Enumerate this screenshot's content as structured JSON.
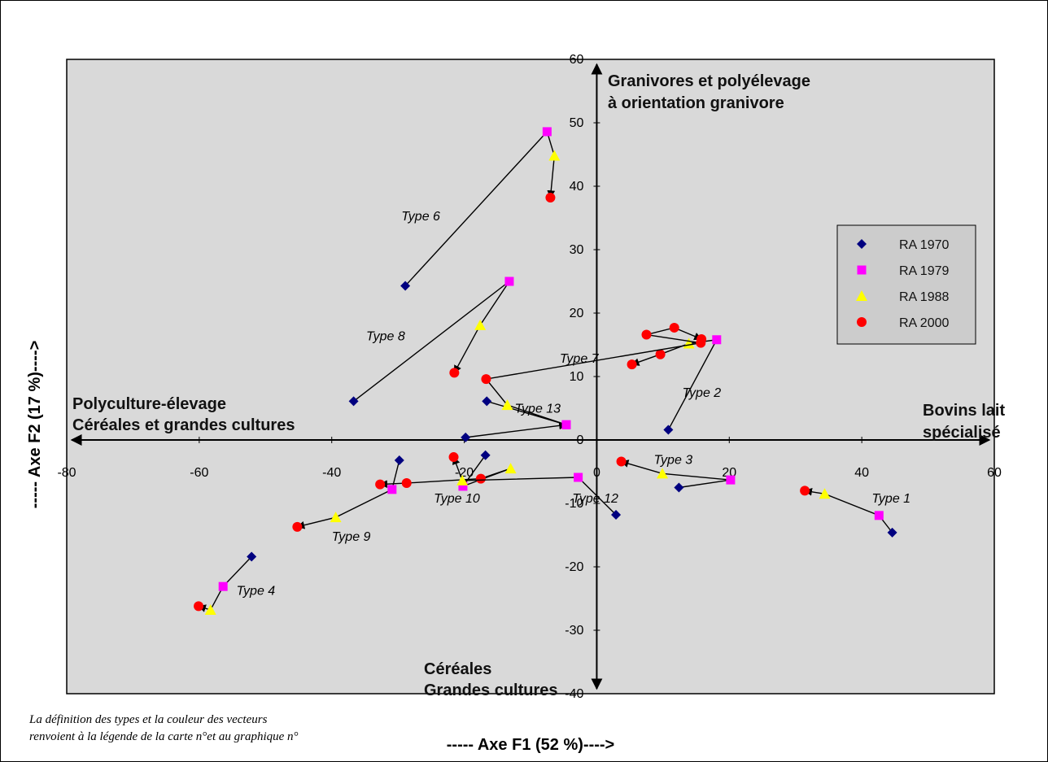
{
  "chart_data": {
    "type": "scatter",
    "xlabel": "----- Axe F1 (52 %)---->",
    "ylabel": "----- Axe F2 (17 %)---->",
    "xlim": [
      -80,
      60
    ],
    "ylim": [
      -40,
      60
    ],
    "xticks": [
      "-80",
      "-60",
      "-40",
      "-20",
      "0",
      "20",
      "40",
      "60"
    ],
    "yticks": [
      "-40",
      "-30",
      "-20",
      "-10",
      "0",
      "10",
      "20",
      "30",
      "40",
      "50",
      "60"
    ],
    "grid": false,
    "legend_position": "right",
    "series": [
      {
        "name": "RA 1970",
        "color": "#000080",
        "marker": "diamond"
      },
      {
        "name": "RA 1979",
        "color": "#ff00ff",
        "marker": "square"
      },
      {
        "name": "RA 1988",
        "color": "#ffff00",
        "marker": "triangle"
      },
      {
        "name": "RA 2000",
        "color": "#ff0000",
        "marker": "circle"
      }
    ],
    "trajectories": [
      {
        "label": "Type 1",
        "points": [
          [
            44.6,
            -14.6
          ],
          [
            42.6,
            -11.9
          ],
          [
            34.4,
            -8.5
          ],
          [
            31.4,
            -8.0
          ]
        ]
      },
      {
        "label": "Type 2",
        "points": [
          [
            10.8,
            1.6
          ],
          [
            18.1,
            15.8
          ],
          [
            13.9,
            15.2
          ],
          [
            9.6,
            13.5
          ],
          [
            5.3,
            11.9
          ]
        ]
      },
      {
        "label": "Type 3",
        "points": [
          [
            12.4,
            -7.5
          ],
          [
            20.2,
            -6.3
          ],
          [
            9.9,
            -5.3
          ],
          [
            3.7,
            -3.4
          ]
        ]
      },
      {
        "label": "Type 4",
        "points": [
          [
            -52.1,
            -18.4
          ],
          [
            -56.4,
            -23.1
          ],
          [
            -58.3,
            -26.8
          ],
          [
            -60.1,
            -26.2
          ]
        ]
      },
      {
        "label": "Type 6",
        "points": [
          [
            -28.9,
            24.3
          ],
          [
            -7.5,
            48.6
          ],
          [
            -6.4,
            44.8
          ],
          [
            -7.0,
            38.2
          ]
        ]
      },
      {
        "label": "Type 7",
        "points": [
          [
            -16.6,
            6.1
          ],
          [
            -4.6,
            2.4
          ],
          [
            -13.5,
            5.5
          ],
          [
            -16.7,
            9.6
          ],
          [
            15.7,
            15.3
          ],
          [
            7.5,
            16.6
          ],
          [
            11.7,
            17.7
          ],
          [
            15.8,
            15.9
          ]
        ]
      },
      {
        "label": "Type 8",
        "points": [
          [
            -36.7,
            6.1
          ],
          [
            -13.2,
            25.0
          ],
          [
            -17.6,
            18.1
          ],
          [
            -21.5,
            10.6
          ]
        ]
      },
      {
        "label": "Type 9",
        "points": [
          [
            -29.8,
            -3.2
          ],
          [
            -30.9,
            -7.8
          ],
          [
            -39.4,
            -12.2
          ],
          [
            -45.2,
            -13.7
          ]
        ]
      },
      {
        "label": "Type 10",
        "points": [
          [
            -16.8,
            -2.4
          ],
          [
            -20.2,
            -7.3
          ],
          [
            -13.0,
            -4.5
          ],
          [
            -17.5,
            -6.1
          ],
          [
            -28.7,
            -6.8
          ],
          [
            -32.7,
            -7.0
          ]
        ]
      },
      {
        "label": "Type 12",
        "points": [
          [
            2.9,
            -11.8
          ],
          [
            -2.8,
            -5.9
          ],
          [
            -20.3,
            -6.4
          ],
          [
            -21.6,
            -2.7
          ]
        ]
      },
      {
        "label": "Type 13",
        "points": [
          [
            -19.8,
            0.4
          ],
          [
            -4.6,
            2.4
          ]
        ]
      }
    ],
    "annotations": [
      "Granivores et polyélevage",
      "à orientation granivore",
      "Polyculture-élevage",
      "Céréales et grandes cultures",
      "Bovins lait",
      "spécialisé",
      "Céréales",
      "Grandes cultures"
    ]
  },
  "texts": {
    "xlabel": "----- Axe F1 (52 %)---->",
    "ylabel": "----- Axe F2 (17 %)---->",
    "q_top_1": "Granivores et polyélevage",
    "q_top_2": "à orientation granivore",
    "q_left_1": "Polyculture-élevage",
    "q_left_2": "Céréales et grandes cultures",
    "q_right_1": "Bovins lait",
    "q_right_2": "spécialisé",
    "q_bottom_1": "Céréales",
    "q_bottom_2": "Grandes cultures",
    "note_1": "La définition des types et la couleur des vecteurs",
    "note_2": "renvoient à la légende de la carte n°et au graphique n°"
  }
}
